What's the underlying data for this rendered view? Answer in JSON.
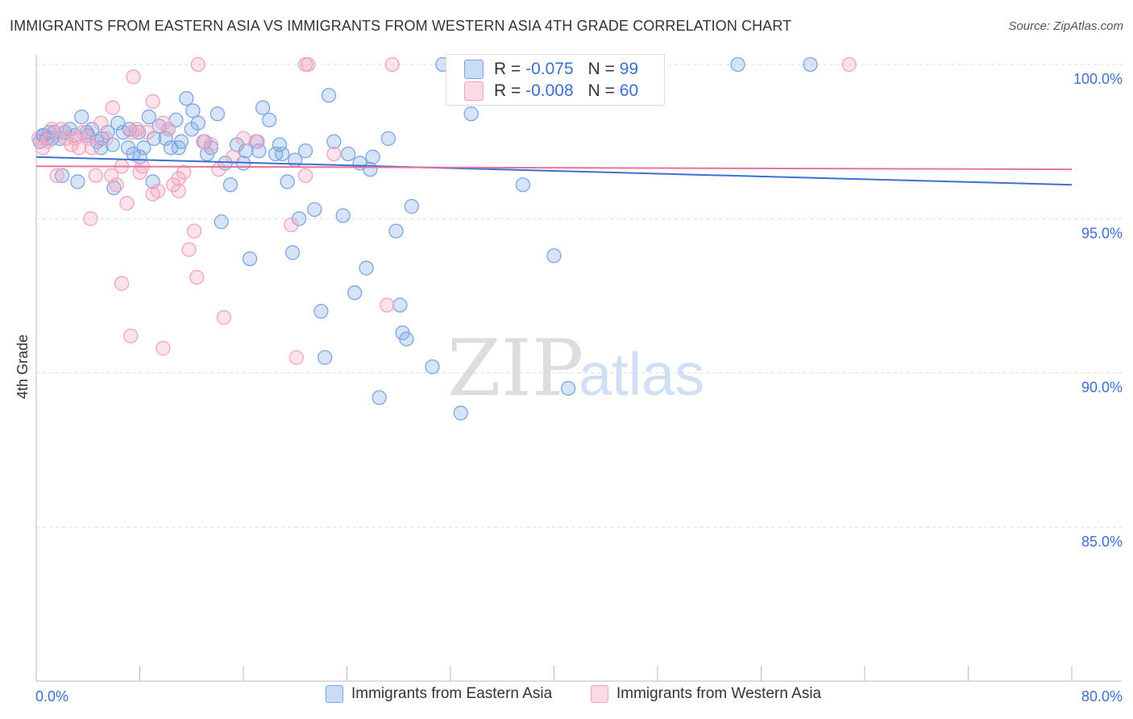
{
  "header": {
    "title": "IMMIGRANTS FROM EASTERN ASIA VS IMMIGRANTS FROM WESTERN ASIA 4TH GRADE CORRELATION CHART",
    "source": "Source: ZipAtlas.com"
  },
  "stats": [
    {
      "r_label": "R =",
      "r_value": "-0.075",
      "n_label": "N =",
      "n_value": "99",
      "color": "#7aa6e6"
    },
    {
      "r_label": "R =",
      "r_value": "-0.008",
      "n_label": "N =",
      "n_value": "60",
      "color": "#f4a3bd"
    }
  ],
  "watermark": {
    "zip": "ZIP",
    "atlas": "atlas"
  },
  "chart_data": {
    "type": "scatter",
    "title": "IMMIGRANTS FROM EASTERN ASIA VS IMMIGRANTS FROM WESTERN ASIA 4TH GRADE CORRELATION CHART",
    "xlabel": "",
    "ylabel": "4th Grade",
    "xlim": [
      0,
      80
    ],
    "ylim": [
      80.5,
      100.8
    ],
    "x_tick_labels": [
      "0.0%",
      "80.0%"
    ],
    "y_ticks": [
      85,
      90,
      95,
      100
    ],
    "y_tick_labels": [
      "85.0%",
      "90.0%",
      "95.0%",
      "100.0%"
    ],
    "grid": "horizontal dashed",
    "legend_position": "bottom-center",
    "series": [
      {
        "name": "Immigrants from Eastern Asia",
        "color": "#7aa6e6",
        "line_color": "#3b6fd4",
        "trend": {
          "x": [
            0,
            80
          ],
          "y": [
            97.0,
            96.1
          ]
        },
        "points": [
          [
            0.3,
            97.5
          ],
          [
            0.5,
            97.7
          ],
          [
            0.8,
            97.6
          ],
          [
            1.0,
            97.8
          ],
          [
            1.4,
            97.8
          ],
          [
            1.8,
            97.6
          ],
          [
            2.2,
            97.8
          ],
          [
            2.6,
            97.9
          ],
          [
            3.0,
            97.7
          ],
          [
            3.5,
            98.3
          ],
          [
            3.9,
            97.8
          ],
          [
            4.3,
            97.9
          ],
          [
            4.7,
            97.5
          ],
          [
            5.1,
            97.6
          ],
          [
            5.5,
            97.8
          ],
          [
            5.9,
            97.4
          ],
          [
            6.3,
            98.1
          ],
          [
            6.7,
            97.8
          ],
          [
            7.1,
            97.3
          ],
          [
            7.5,
            97.1
          ],
          [
            7.9,
            97.8
          ],
          [
            8.3,
            97.3
          ],
          [
            8.7,
            98.3
          ],
          [
            9.1,
            97.6
          ],
          [
            9.5,
            98.0
          ],
          [
            10.0,
            97.6
          ],
          [
            10.4,
            97.3
          ],
          [
            10.8,
            98.2
          ],
          [
            11.2,
            97.5
          ],
          [
            11.6,
            98.9
          ],
          [
            12.1,
            98.5
          ],
          [
            12.5,
            98.1
          ],
          [
            13.0,
            97.5
          ],
          [
            13.5,
            97.3
          ],
          [
            14.0,
            98.4
          ],
          [
            14.3,
            94.9
          ],
          [
            15.0,
            96.1
          ],
          [
            15.5,
            97.4
          ],
          [
            16.0,
            96.8
          ],
          [
            16.5,
            93.7
          ],
          [
            17.0,
            97.5
          ],
          [
            17.5,
            98.6
          ],
          [
            18.0,
            98.2
          ],
          [
            18.5,
            97.1
          ],
          [
            19.0,
            97.1
          ],
          [
            19.4,
            96.2
          ],
          [
            19.8,
            93.9
          ],
          [
            20.3,
            95.0
          ],
          [
            20.8,
            97.2
          ],
          [
            21.5,
            95.3
          ],
          [
            22.0,
            92.0
          ],
          [
            22.3,
            90.5
          ],
          [
            22.6,
            99.0
          ],
          [
            23.0,
            97.5
          ],
          [
            23.7,
            95.1
          ],
          [
            24.1,
            97.1
          ],
          [
            24.6,
            92.6
          ],
          [
            25.0,
            96.8
          ],
          [
            25.5,
            93.4
          ],
          [
            25.8,
            96.6
          ],
          [
            26.0,
            97.0
          ],
          [
            26.5,
            89.2
          ],
          [
            27.2,
            97.6
          ],
          [
            27.8,
            94.6
          ],
          [
            28.1,
            92.2
          ],
          [
            28.3,
            91.3
          ],
          [
            28.6,
            91.1
          ],
          [
            29.0,
            95.4
          ],
          [
            30.6,
            90.2
          ],
          [
            31.4,
            100.0
          ],
          [
            32.2,
            100.0
          ],
          [
            32.8,
            88.7
          ],
          [
            33.6,
            98.4
          ],
          [
            36.0,
            100.0
          ],
          [
            37.6,
            96.1
          ],
          [
            40.0,
            93.8
          ],
          [
            41.1,
            89.5
          ],
          [
            44.7,
            100.0
          ],
          [
            54.2,
            100.0
          ],
          [
            59.8,
            100.0
          ],
          [
            0.6,
            97.7
          ],
          [
            1.2,
            97.6
          ],
          [
            2.0,
            96.4
          ],
          [
            3.2,
            96.2
          ],
          [
            4.0,
            97.7
          ],
          [
            5.0,
            97.3
          ],
          [
            6.0,
            96.0
          ],
          [
            7.2,
            97.9
          ],
          [
            8.0,
            97.0
          ],
          [
            9.0,
            96.2
          ],
          [
            10.2,
            97.9
          ],
          [
            11.0,
            97.3
          ],
          [
            12.0,
            97.9
          ],
          [
            13.2,
            97.1
          ],
          [
            14.6,
            96.8
          ],
          [
            16.2,
            97.2
          ],
          [
            17.2,
            97.2
          ],
          [
            18.8,
            97.4
          ],
          [
            20.0,
            96.9
          ]
        ]
      },
      {
        "name": "Immigrants from Western Asia",
        "color": "#f4a3bd",
        "line_color": "#e8729a",
        "trend": {
          "x": [
            0,
            80
          ],
          "y": [
            96.7,
            96.6
          ]
        },
        "points": [
          [
            0.2,
            97.6
          ],
          [
            0.5,
            97.3
          ],
          [
            0.9,
            97.5
          ],
          [
            1.2,
            97.9
          ],
          [
            1.6,
            96.4
          ],
          [
            1.9,
            97.9
          ],
          [
            2.3,
            97.6
          ],
          [
            2.7,
            97.4
          ],
          [
            3.0,
            97.6
          ],
          [
            3.3,
            97.3
          ],
          [
            3.6,
            97.8
          ],
          [
            4.0,
            97.6
          ],
          [
            4.3,
            97.3
          ],
          [
            4.6,
            96.4
          ],
          [
            5.0,
            98.1
          ],
          [
            5.4,
            97.6
          ],
          [
            5.8,
            96.4
          ],
          [
            6.2,
            96.1
          ],
          [
            6.6,
            96.7
          ],
          [
            7.0,
            95.5
          ],
          [
            7.4,
            97.8
          ],
          [
            7.8,
            97.9
          ],
          [
            8.2,
            96.7
          ],
          [
            8.6,
            97.8
          ],
          [
            9.0,
            95.8
          ],
          [
            9.4,
            95.9
          ],
          [
            9.8,
            98.1
          ],
          [
            10.2,
            97.9
          ],
          [
            10.6,
            96.1
          ],
          [
            11.0,
            95.9
          ],
          [
            11.4,
            96.5
          ],
          [
            11.8,
            94.0
          ],
          [
            12.2,
            94.6
          ],
          [
            12.4,
            93.1
          ],
          [
            12.9,
            97.5
          ],
          [
            13.5,
            97.4
          ],
          [
            14.1,
            96.6
          ],
          [
            14.5,
            91.8
          ],
          [
            15.2,
            97.0
          ],
          [
            16.0,
            97.6
          ],
          [
            17.1,
            97.5
          ],
          [
            19.7,
            94.8
          ],
          [
            20.1,
            90.5
          ],
          [
            20.8,
            96.4
          ],
          [
            23.0,
            97.1
          ],
          [
            27.1,
            92.2
          ],
          [
            4.2,
            95.0
          ],
          [
            5.9,
            98.6
          ],
          [
            6.6,
            92.9
          ],
          [
            7.3,
            91.2
          ],
          [
            7.5,
            99.6
          ],
          [
            8.0,
            96.5
          ],
          [
            9.0,
            98.8
          ],
          [
            9.8,
            90.8
          ],
          [
            11.0,
            96.3
          ],
          [
            12.5,
            100.0
          ],
          [
            20.8,
            100.0
          ],
          [
            21.0,
            100.0
          ],
          [
            27.5,
            100.0
          ],
          [
            62.8,
            100.0
          ]
        ]
      }
    ]
  }
}
